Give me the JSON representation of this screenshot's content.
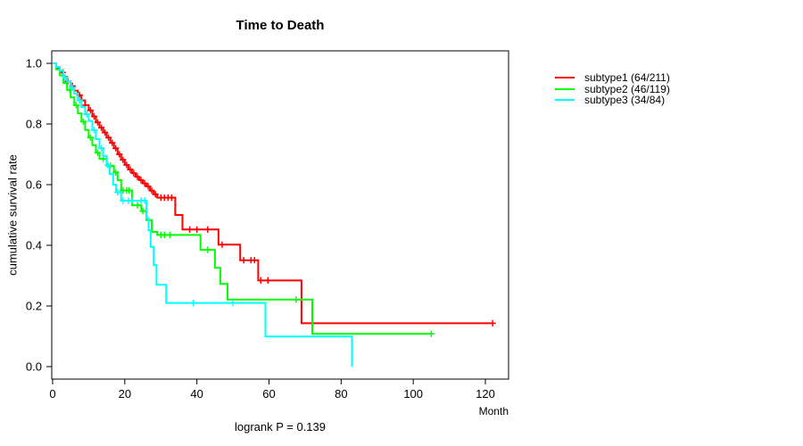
{
  "title": "Time to Death",
  "footer": "logrank P = 0.139",
  "x_axis": {
    "label": "Month",
    "ticks": [
      0,
      20,
      40,
      60,
      80,
      100,
      120
    ],
    "tick_labels": [
      "0",
      "20",
      "40",
      "60",
      "80",
      "100",
      "120"
    ]
  },
  "y_axis": {
    "label": "cumulative survival rate",
    "ticks": [
      0.0,
      0.2,
      0.4,
      0.6,
      0.8,
      1.0
    ],
    "tick_labels": [
      "0.0",
      "0.2",
      "0.4",
      "0.6",
      "0.8",
      "1.0"
    ]
  },
  "chart_data": {
    "type": "line",
    "subtype": "kaplan-meier-step-curves",
    "title": "Time to Death",
    "xlabel": "Month",
    "ylabel": "cumulative survival rate",
    "xlim": [
      0,
      127
    ],
    "ylim": [
      0.0,
      1.0
    ],
    "grid": false,
    "legend_position": "right-outside",
    "annotation": "logrank P = 0.139",
    "axis_color": "#000000",
    "series": [
      {
        "name": "subtype1 (64/211)",
        "color": "#ff0000",
        "end_month": 122,
        "steps": [
          [
            0,
            1.0
          ],
          [
            1,
            0.985
          ],
          [
            2,
            0.97
          ],
          [
            3,
            0.955
          ],
          [
            4,
            0.94
          ],
          [
            5,
            0.925
          ],
          [
            6,
            0.91
          ],
          [
            7,
            0.895
          ],
          [
            8,
            0.878
          ],
          [
            9,
            0.862
          ],
          [
            10,
            0.845
          ],
          [
            11,
            0.825
          ],
          [
            12,
            0.805
          ],
          [
            13,
            0.788
          ],
          [
            14,
            0.772
          ],
          [
            15,
            0.755
          ],
          [
            16,
            0.738
          ],
          [
            17,
            0.72
          ],
          [
            18,
            0.7
          ],
          [
            19,
            0.682
          ],
          [
            20,
            0.665
          ],
          [
            21,
            0.65
          ],
          [
            22,
            0.638
          ],
          [
            23,
            0.626
          ],
          [
            24,
            0.615
          ],
          [
            25,
            0.604
          ],
          [
            26,
            0.594
          ],
          [
            27,
            0.58
          ],
          [
            28,
            0.568
          ],
          [
            29,
            0.557
          ],
          [
            34,
            0.5
          ],
          [
            36,
            0.452
          ],
          [
            46,
            0.402
          ],
          [
            52,
            0.351
          ],
          [
            57,
            0.284
          ],
          [
            69,
            0.143
          ]
        ],
        "censor_months": [
          2.8,
          4.2,
          5.5,
          7.5,
          9,
          10.5,
          11.5,
          12.5,
          13.5,
          14.5,
          15.5,
          16.5,
          17.5,
          18.5,
          19.5,
          20.5,
          21.5,
          22.5,
          23.5,
          24.5,
          25.5,
          26.5,
          27.5,
          28.5,
          30,
          31,
          32,
          33,
          38,
          40,
          43,
          47,
          53,
          55,
          56,
          57.7,
          59.7,
          122
        ]
      },
      {
        "name": "subtype2 (46/119)",
        "color": "#00ff00",
        "end_month": 105,
        "steps": [
          [
            0,
            1.0
          ],
          [
            1,
            0.98
          ],
          [
            2,
            0.96
          ],
          [
            3,
            0.935
          ],
          [
            4,
            0.912
          ],
          [
            5,
            0.888
          ],
          [
            6,
            0.862
          ],
          [
            7,
            0.835
          ],
          [
            8,
            0.808
          ],
          [
            9,
            0.78
          ],
          [
            10,
            0.755
          ],
          [
            11,
            0.73
          ],
          [
            12,
            0.705
          ],
          [
            13,
            0.685
          ],
          [
            15,
            0.662
          ],
          [
            17,
            0.64
          ],
          [
            18,
            0.615
          ],
          [
            19,
            0.581
          ],
          [
            22,
            0.532
          ],
          [
            24.6,
            0.513
          ],
          [
            26,
            0.483
          ],
          [
            27.5,
            0.444
          ],
          [
            29,
            0.434
          ],
          [
            41,
            0.385
          ],
          [
            45,
            0.326
          ],
          [
            46.5,
            0.273
          ],
          [
            48.5,
            0.221
          ],
          [
            72,
            0.108
          ]
        ],
        "censor_months": [
          4.8,
          6.5,
          8.5,
          10.5,
          12.5,
          14,
          16,
          17.5,
          19.5,
          20.5,
          21.2,
          23.5,
          25,
          30,
          31,
          32.5,
          43,
          67.5,
          105
        ]
      },
      {
        "name": "subtype3 (34/84)",
        "color": "#00ffff",
        "end_month": 83,
        "steps": [
          [
            0,
            1.0
          ],
          [
            1,
            0.988
          ],
          [
            2,
            0.976
          ],
          [
            3,
            0.953
          ],
          [
            4,
            0.94
          ],
          [
            5,
            0.92
          ],
          [
            6,
            0.9
          ],
          [
            7,
            0.878
          ],
          [
            8,
            0.856
          ],
          [
            9,
            0.832
          ],
          [
            10,
            0.81
          ],
          [
            11,
            0.78
          ],
          [
            12,
            0.75
          ],
          [
            13,
            0.72
          ],
          [
            14,
            0.695
          ],
          [
            15,
            0.665
          ],
          [
            15.8,
            0.635
          ],
          [
            16.8,
            0.6
          ],
          [
            17.6,
            0.575
          ],
          [
            19,
            0.547
          ],
          [
            26,
            0.49
          ],
          [
            26.6,
            0.45
          ],
          [
            27.2,
            0.395
          ],
          [
            28,
            0.335
          ],
          [
            28.8,
            0.27
          ],
          [
            31.5,
            0.21
          ],
          [
            59,
            0.099
          ],
          [
            83,
            0.0
          ]
        ],
        "censor_months": [
          3.5,
          5.5,
          7.5,
          9.5,
          11.5,
          13.5,
          15.3,
          18,
          19.5,
          21,
          22,
          24.5,
          25.5,
          39,
          50
        ]
      }
    ]
  }
}
